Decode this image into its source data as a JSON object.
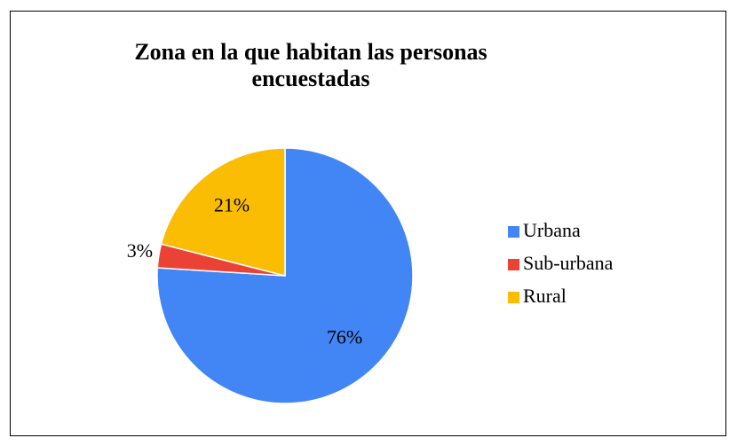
{
  "chart_data": {
    "type": "pie",
    "title": "Zona en la que habitan las personas encuestadas",
    "categories": [
      "Urbana",
      "Sub-urbana",
      "Rural"
    ],
    "values": [
      76,
      3,
      21
    ],
    "value_labels": [
      "76%",
      "3%",
      "21%"
    ],
    "colors": [
      "#4285f4",
      "#ea4335",
      "#fbbc04"
    ],
    "legend": "right"
  }
}
